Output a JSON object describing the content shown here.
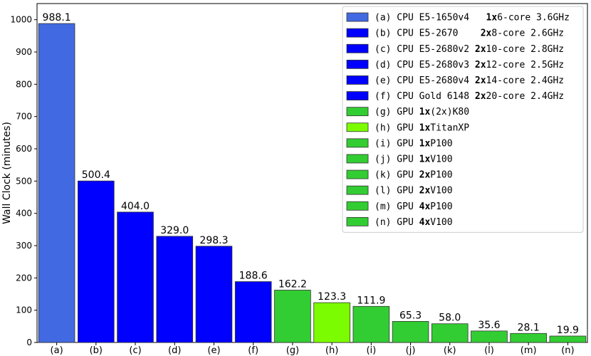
{
  "chart_data": {
    "type": "bar",
    "title": "",
    "xlabel": "",
    "ylabel": "Wall Clock (minutes)",
    "ylim": [
      0,
      1050
    ],
    "yticks": [
      0,
      100,
      200,
      300,
      400,
      500,
      600,
      700,
      800,
      900,
      1000
    ],
    "grid": false,
    "legend_position": "top-right",
    "categories": [
      "(a)",
      "(b)",
      "(c)",
      "(d)",
      "(e)",
      "(f)",
      "(g)",
      "(h)",
      "(i)",
      "(j)",
      "(k)",
      "(l)",
      "(m)",
      "(n)"
    ],
    "values": [
      988.1,
      500.4,
      404.0,
      329.0,
      298.3,
      188.6,
      162.2,
      123.3,
      111.9,
      65.3,
      58.0,
      35.6,
      28.1,
      19.9
    ],
    "value_labels": [
      "988.1",
      "500.4",
      "404.0",
      "329.0",
      "298.3",
      "188.6",
      "162.2",
      "123.3",
      "111.9",
      "65.3",
      "58.0",
      "35.6",
      "28.1",
      "19.9"
    ],
    "colors": [
      "#4169e1",
      "#0000ff",
      "#0000ff",
      "#0000ff",
      "#0000ff",
      "#0000ff",
      "#32cd32",
      "#7cfc00",
      "#32cd32",
      "#32cd32",
      "#32cd32",
      "#32cd32",
      "#32cd32",
      "#32cd32"
    ],
    "legend": [
      {
        "parts": [
          {
            "t": "(a) CPU E5-1650v4   ",
            "b": false
          },
          {
            "t": "1x",
            "b": true
          },
          {
            "t": "6-core 3.6GHz",
            "b": false
          }
        ]
      },
      {
        "parts": [
          {
            "t": "(b) CPU E5-2670    ",
            "b": false
          },
          {
            "t": "2x",
            "b": true
          },
          {
            "t": "8-core 2.6GHz",
            "b": false
          }
        ]
      },
      {
        "parts": [
          {
            "t": "(c) CPU E5-2680v2 ",
            "b": false
          },
          {
            "t": "2x",
            "b": true
          },
          {
            "t": "10-core 2.8GHz",
            "b": false
          }
        ]
      },
      {
        "parts": [
          {
            "t": "(d) CPU E5-2680v3 ",
            "b": false
          },
          {
            "t": "2x",
            "b": true
          },
          {
            "t": "12-core 2.5GHz",
            "b": false
          }
        ]
      },
      {
        "parts": [
          {
            "t": "(e) CPU E5-2680v4 ",
            "b": false
          },
          {
            "t": "2x",
            "b": true
          },
          {
            "t": "14-core 2.4GHz",
            "b": false
          }
        ]
      },
      {
        "parts": [
          {
            "t": "(f) CPU Gold 6148 ",
            "b": false
          },
          {
            "t": "2x",
            "b": true
          },
          {
            "t": "20-core 2.4GHz",
            "b": false
          }
        ]
      },
      {
        "parts": [
          {
            "t": "(g) GPU ",
            "b": false
          },
          {
            "t": "1x",
            "b": true
          },
          {
            "t": "(2x)K80",
            "b": false
          }
        ]
      },
      {
        "parts": [
          {
            "t": "(h) GPU ",
            "b": false
          },
          {
            "t": "1x",
            "b": true
          },
          {
            "t": "TitanXP",
            "b": false
          }
        ]
      },
      {
        "parts": [
          {
            "t": "(i) GPU ",
            "b": false
          },
          {
            "t": "1x",
            "b": true
          },
          {
            "t": "P100",
            "b": false
          }
        ]
      },
      {
        "parts": [
          {
            "t": "(j) GPU ",
            "b": false
          },
          {
            "t": "1x",
            "b": true
          },
          {
            "t": "V100",
            "b": false
          }
        ]
      },
      {
        "parts": [
          {
            "t": "(k) GPU ",
            "b": false
          },
          {
            "t": "2x",
            "b": true
          },
          {
            "t": "P100",
            "b": false
          }
        ]
      },
      {
        "parts": [
          {
            "t": "(l) GPU ",
            "b": false
          },
          {
            "t": "2x",
            "b": true
          },
          {
            "t": "V100",
            "b": false
          }
        ]
      },
      {
        "parts": [
          {
            "t": "(m) GPU ",
            "b": false
          },
          {
            "t": "4x",
            "b": true
          },
          {
            "t": "P100",
            "b": false
          }
        ]
      },
      {
        "parts": [
          {
            "t": "(n) GPU ",
            "b": false
          },
          {
            "t": "4x",
            "b": true
          },
          {
            "t": "V100",
            "b": false
          }
        ]
      }
    ]
  }
}
